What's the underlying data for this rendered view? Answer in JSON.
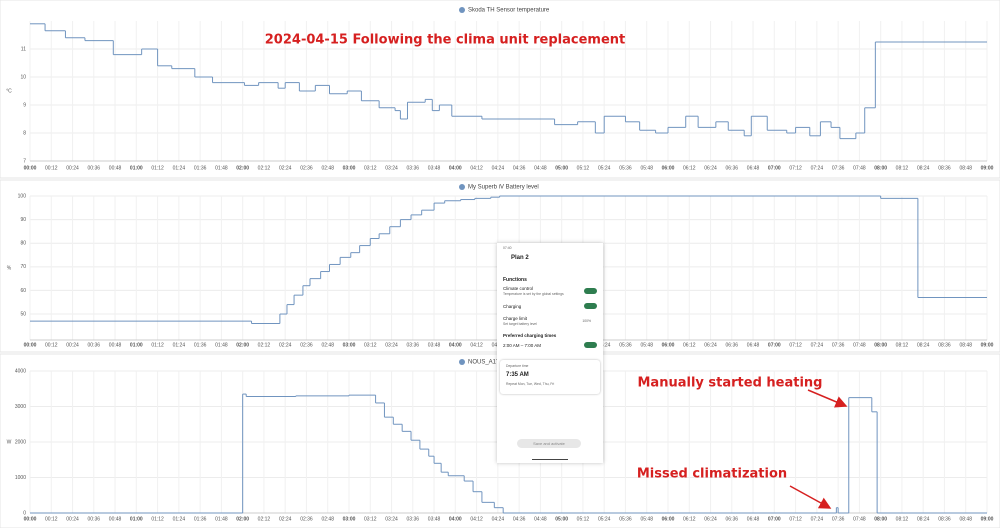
{
  "chart_data": [
    {
      "type": "line",
      "step": true,
      "title": "Skoda TH Sensor temperature",
      "y_label": "°C",
      "color": "#7094bf",
      "annotation": "2024-04-15 Following the clima unit replacement",
      "xlim": [
        0,
        540
      ],
      "ylim": [
        7,
        12
      ],
      "yticks": [
        7,
        8,
        9,
        10,
        11
      ],
      "grid": true,
      "xticks": [
        {
          "value": 0,
          "label": "00:00"
        },
        {
          "value": 12,
          "label": "00:12"
        },
        {
          "value": 24,
          "label": "00:24"
        },
        {
          "value": 36,
          "label": "00:36"
        },
        {
          "value": 48,
          "label": "00:48"
        },
        {
          "value": 60,
          "label": "01:00"
        },
        {
          "value": 72,
          "label": "01:12"
        },
        {
          "value": 84,
          "label": "01:24"
        },
        {
          "value": 96,
          "label": "01:36"
        },
        {
          "value": 108,
          "label": "01:48"
        },
        {
          "value": 120,
          "label": "02:00"
        },
        {
          "value": 132,
          "label": "02:12"
        },
        {
          "value": 144,
          "label": "02:24"
        },
        {
          "value": 156,
          "label": "02:36"
        },
        {
          "value": 168,
          "label": "02:48"
        },
        {
          "value": 180,
          "label": "03:00"
        },
        {
          "value": 192,
          "label": "03:12"
        },
        {
          "value": 204,
          "label": "03:24"
        },
        {
          "value": 216,
          "label": "03:36"
        },
        {
          "value": 228,
          "label": "03:48"
        },
        {
          "value": 240,
          "label": "04:00"
        },
        {
          "value": 252,
          "label": "04:12"
        },
        {
          "value": 264,
          "label": "04:24"
        },
        {
          "value": 276,
          "label": "04:36"
        },
        {
          "value": 288,
          "label": "04:48"
        },
        {
          "value": 300,
          "label": "05:00"
        },
        {
          "value": 312,
          "label": "05:12"
        },
        {
          "value": 324,
          "label": "05:24"
        },
        {
          "value": 336,
          "label": "05:36"
        },
        {
          "value": 348,
          "label": "05:48"
        },
        {
          "value": 360,
          "label": "06:00"
        },
        {
          "value": 372,
          "label": "06:12"
        },
        {
          "value": 384,
          "label": "06:24"
        },
        {
          "value": 396,
          "label": "06:36"
        },
        {
          "value": 408,
          "label": "06:48"
        },
        {
          "value": 420,
          "label": "07:00"
        },
        {
          "value": 432,
          "label": "07:12"
        },
        {
          "value": 444,
          "label": "07:24"
        },
        {
          "value": 456,
          "label": "07:36"
        },
        {
          "value": 468,
          "label": "07:48"
        },
        {
          "value": 480,
          "label": "08:00"
        },
        {
          "value": 492,
          "label": "08:12"
        },
        {
          "value": 504,
          "label": "08:24"
        },
        {
          "value": 516,
          "label": "08:36"
        },
        {
          "value": 528,
          "label": "08:48"
        },
        {
          "value": 540,
          "label": "09:00"
        }
      ],
      "x": [
        0,
        8.5,
        20,
        31,
        47,
        63,
        72,
        80,
        93,
        103,
        121,
        129,
        140,
        144,
        152,
        161,
        169,
        179,
        187,
        197,
        206,
        209,
        213,
        223,
        227,
        231,
        238,
        255,
        296,
        309,
        319,
        324,
        336,
        344,
        353,
        360,
        370,
        377,
        387,
        394,
        403,
        407,
        416,
        427,
        432,
        440,
        446,
        452,
        457,
        466,
        471,
        477
      ],
      "values": [
        11.9,
        11.65,
        11.4,
        11.3,
        10.8,
        11.0,
        10.4,
        10.3,
        10.0,
        9.8,
        9.7,
        9.8,
        9.6,
        9.8,
        9.5,
        9.7,
        9.4,
        9.5,
        9.15,
        8.9,
        8.8,
        8.5,
        9.1,
        9.2,
        8.8,
        9.0,
        8.6,
        8.5,
        8.3,
        8.4,
        8.0,
        8.6,
        8.4,
        8.1,
        8.0,
        8.2,
        8.6,
        8.2,
        8.4,
        8.1,
        7.9,
        8.6,
        8.1,
        8.0,
        8.2,
        7.9,
        8.4,
        8.2,
        7.8,
        8.0,
        8.9,
        11.25
      ]
    },
    {
      "type": "line",
      "step": true,
      "title": "My Superb iV Battery level",
      "y_label": "%",
      "color": "#7094bf",
      "xlim": [
        0,
        540
      ],
      "ylim": [
        39,
        100
      ],
      "yticks": [
        50,
        60,
        70,
        80,
        90,
        100
      ],
      "grid": true,
      "xticks": [
        {
          "value": 0,
          "label": "00:00"
        },
        {
          "value": 12,
          "label": "00:12"
        },
        {
          "value": 24,
          "label": "00:24"
        },
        {
          "value": 36,
          "label": "00:36"
        },
        {
          "value": 48,
          "label": "00:48"
        },
        {
          "value": 60,
          "label": "01:00"
        },
        {
          "value": 72,
          "label": "01:12"
        },
        {
          "value": 84,
          "label": "01:24"
        },
        {
          "value": 96,
          "label": "01:36"
        },
        {
          "value": 108,
          "label": "01:48"
        },
        {
          "value": 120,
          "label": "02:00"
        },
        {
          "value": 132,
          "label": "02:12"
        },
        {
          "value": 144,
          "label": "02:24"
        },
        {
          "value": 156,
          "label": "02:36"
        },
        {
          "value": 168,
          "label": "02:48"
        },
        {
          "value": 180,
          "label": "03:00"
        },
        {
          "value": 192,
          "label": "03:12"
        },
        {
          "value": 204,
          "label": "03:24"
        },
        {
          "value": 216,
          "label": "03:36"
        },
        {
          "value": 228,
          "label": "03:48"
        },
        {
          "value": 240,
          "label": "04:00"
        },
        {
          "value": 252,
          "label": "04:12"
        },
        {
          "value": 264,
          "label": "04:24"
        },
        {
          "value": 276,
          "label": "04:36"
        },
        {
          "value": 288,
          "label": "04:48"
        },
        {
          "value": 300,
          "label": "05:00"
        },
        {
          "value": 312,
          "label": "05:12"
        },
        {
          "value": 324,
          "label": "05:24"
        },
        {
          "value": 336,
          "label": "05:36"
        },
        {
          "value": 348,
          "label": "05:48"
        },
        {
          "value": 360,
          "label": "06:00"
        },
        {
          "value": 372,
          "label": "06:12"
        },
        {
          "value": 384,
          "label": "06:24"
        },
        {
          "value": 396,
          "label": "06:36"
        },
        {
          "value": 408,
          "label": "06:48"
        },
        {
          "value": 420,
          "label": "07:00"
        },
        {
          "value": 432,
          "label": "07:12"
        },
        {
          "value": 444,
          "label": "07:24"
        },
        {
          "value": 456,
          "label": "07:36"
        },
        {
          "value": 468,
          "label": "07:48"
        },
        {
          "value": 480,
          "label": "08:00"
        },
        {
          "value": 492,
          "label": "08:12"
        },
        {
          "value": 504,
          "label": "08:24"
        },
        {
          "value": 516,
          "label": "08:36"
        },
        {
          "value": 528,
          "label": "08:48"
        },
        {
          "value": 540,
          "label": "09:00"
        }
      ],
      "x": [
        0,
        125,
        141,
        145,
        149,
        154,
        158,
        164,
        169,
        175,
        181,
        186,
        192,
        197,
        203,
        209,
        215,
        221,
        228,
        234,
        243,
        251,
        260,
        265,
        480,
        501
      ],
      "values": [
        47,
        46,
        50,
        54,
        58,
        62,
        65,
        68,
        71,
        74,
        76,
        79,
        82,
        84,
        87,
        90,
        92,
        94,
        97,
        98,
        98.5,
        99,
        99.5,
        100,
        99,
        57
      ]
    },
    {
      "type": "line",
      "step": true,
      "title": "NOUS_A1T_Soc",
      "y_label": "W",
      "color": "#7094bf",
      "annotations": [
        "Manually started heating",
        "Missed climatization"
      ],
      "xlim": [
        0,
        540
      ],
      "ylim": [
        0,
        4000
      ],
      "yticks": [
        0,
        1000,
        2000,
        3000,
        4000
      ],
      "grid": true,
      "xticks": [
        {
          "value": 0,
          "label": "00:00"
        },
        {
          "value": 12,
          "label": "00:12"
        },
        {
          "value": 24,
          "label": "00:24"
        },
        {
          "value": 36,
          "label": "00:36"
        },
        {
          "value": 48,
          "label": "00:48"
        },
        {
          "value": 60,
          "label": "01:00"
        },
        {
          "value": 72,
          "label": "01:12"
        },
        {
          "value": 84,
          "label": "01:24"
        },
        {
          "value": 96,
          "label": "01:36"
        },
        {
          "value": 108,
          "label": "01:48"
        },
        {
          "value": 120,
          "label": "02:00"
        },
        {
          "value": 132,
          "label": "02:12"
        },
        {
          "value": 144,
          "label": "02:24"
        },
        {
          "value": 156,
          "label": "02:36"
        },
        {
          "value": 168,
          "label": "02:48"
        },
        {
          "value": 180,
          "label": "03:00"
        },
        {
          "value": 192,
          "label": "03:12"
        },
        {
          "value": 204,
          "label": "03:24"
        },
        {
          "value": 216,
          "label": "03:36"
        },
        {
          "value": 228,
          "label": "03:48"
        },
        {
          "value": 240,
          "label": "04:00"
        },
        {
          "value": 252,
          "label": "04:12"
        },
        {
          "value": 264,
          "label": "04:24"
        },
        {
          "value": 276,
          "label": "04:36"
        },
        {
          "value": 288,
          "label": "04:48"
        },
        {
          "value": 300,
          "label": "05:00"
        },
        {
          "value": 312,
          "label": "05:12"
        },
        {
          "value": 324,
          "label": "05:24"
        },
        {
          "value": 336,
          "label": "05:36"
        },
        {
          "value": 348,
          "label": "05:48"
        },
        {
          "value": 360,
          "label": "06:00"
        },
        {
          "value": 372,
          "label": "06:12"
        },
        {
          "value": 384,
          "label": "06:24"
        },
        {
          "value": 396,
          "label": "06:36"
        },
        {
          "value": 408,
          "label": "06:48"
        },
        {
          "value": 420,
          "label": "07:00"
        },
        {
          "value": 432,
          "label": "07:12"
        },
        {
          "value": 444,
          "label": "07:24"
        },
        {
          "value": 456,
          "label": "07:36"
        },
        {
          "value": 468,
          "label": "07:48"
        },
        {
          "value": 480,
          "label": "08:00"
        },
        {
          "value": 492,
          "label": "08:12"
        },
        {
          "value": 504,
          "label": "08:24"
        },
        {
          "value": 516,
          "label": "08:36"
        },
        {
          "value": 528,
          "label": "08:48"
        },
        {
          "value": 540,
          "label": "09:00"
        }
      ],
      "x": [
        0,
        120,
        122,
        150,
        180,
        195,
        200,
        205,
        210,
        215,
        220,
        225,
        228,
        232,
        236,
        245,
        250,
        255,
        262,
        267,
        455,
        456,
        462,
        475,
        478
      ],
      "values": [
        0,
        3350,
        3280,
        3300,
        3320,
        3100,
        2700,
        2500,
        2300,
        2050,
        1800,
        1600,
        1400,
        1150,
        1050,
        900,
        600,
        300,
        150,
        0,
        150,
        0,
        3250,
        2850,
        0
      ]
    }
  ],
  "phone_overlay": {
    "status": "07:40",
    "title": "Plan 2",
    "section": "Functions",
    "climate": "Climate control",
    "climate_note": "Temperature is set by the global settings",
    "charging": "Charging",
    "limit": "Charge limit",
    "limit_note": "Set target battery level",
    "limit_value": "100%",
    "times_header": "Preferred charging times",
    "times": "2:00 AM – 7:00 AM",
    "departure": "Departure time",
    "departure_time": "7:35 AM",
    "repeat": "Repeat Mon, Tue, Wed, Thu, Fri",
    "button": "Save and activate"
  }
}
